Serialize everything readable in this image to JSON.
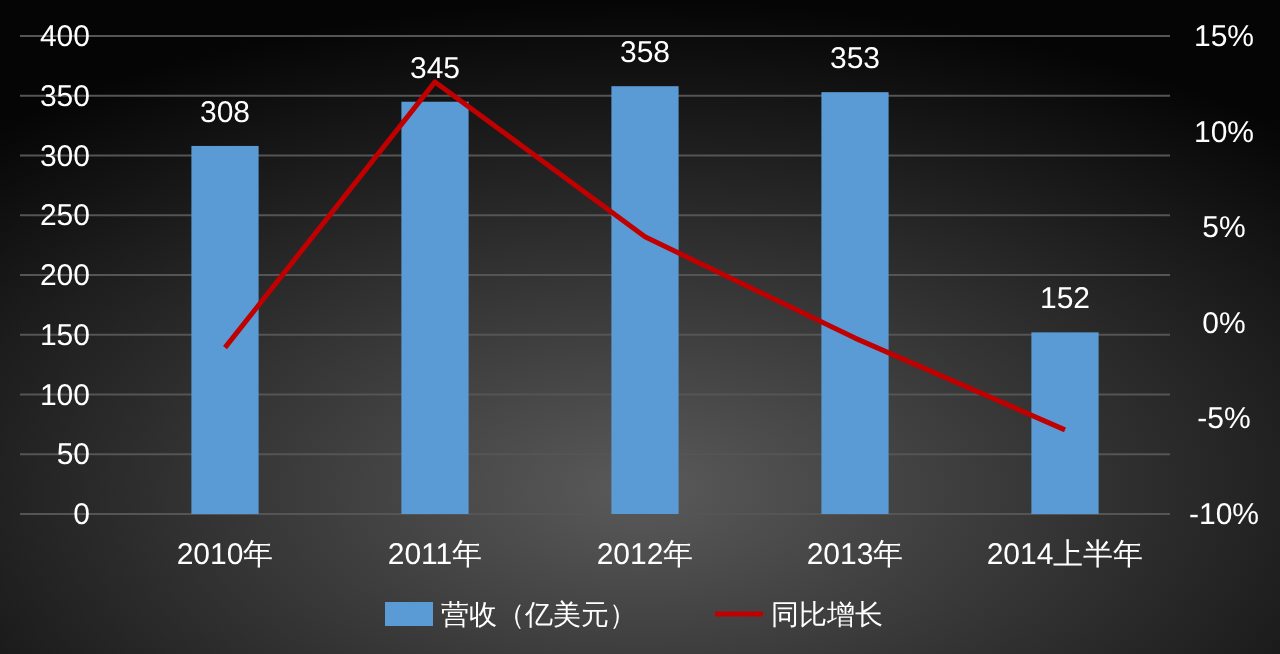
{
  "chart_data": {
    "type": "bar",
    "categories": [
      "2010年",
      "2011年",
      "2012年",
      "2013年",
      "2014上半年"
    ],
    "series": [
      {
        "name": "营收（亿美元）",
        "color": "#5b9bd5",
        "values": [
          308,
          345,
          358,
          353,
          152
        ],
        "value_labels": [
          "308",
          "345",
          "358",
          "353",
          "152"
        ]
      },
      {
        "name": "同比增长",
        "type": "line",
        "axis": "y2",
        "color": "#c00000",
        "values": [
          -1.3,
          12.6,
          4.5,
          -0.8,
          -5.6
        ]
      }
    ],
    "ylim": [
      0,
      400
    ],
    "yticks": [
      0,
      50,
      100,
      150,
      200,
      250,
      300,
      350,
      400
    ],
    "y2lim": [
      -10,
      15
    ],
    "y2ticks": [
      {
        "value": -10,
        "label": "-10%"
      },
      {
        "value": -5,
        "label": "-5%"
      },
      {
        "value": 0,
        "label": "0%"
      },
      {
        "value": 5,
        "label": "5%"
      },
      {
        "value": 10,
        "label": "10%"
      },
      {
        "value": 15,
        "label": "15%"
      }
    ],
    "grid": "y",
    "legend": "bottom",
    "marker": "none"
  }
}
